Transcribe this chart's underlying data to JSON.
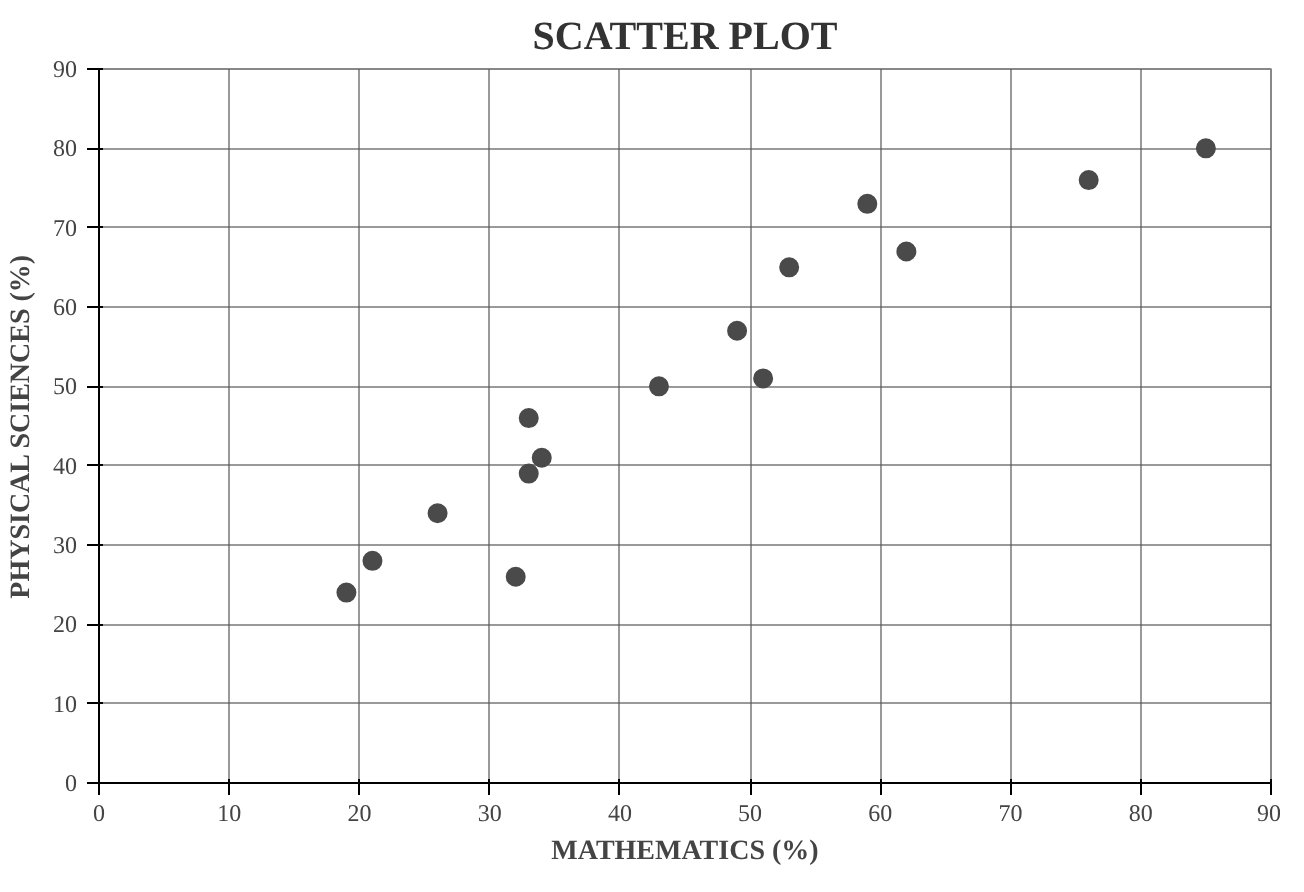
{
  "chart_data": {
    "type": "scatter",
    "title": "SCATTER PLOT",
    "xlabel": "MATHEMATICS (%)",
    "ylabel": "PHYSICAL SCIENCES (%)",
    "x": [
      19,
      21,
      26,
      32,
      33,
      33,
      34,
      43,
      49,
      51,
      53,
      59,
      62,
      76,
      85
    ],
    "series": [
      {
        "color": "#4a4a4a",
        "values": [
          24,
          28,
          34,
          26,
          39,
          46,
          41,
          50,
          57,
          51,
          65,
          73,
          67,
          76,
          80
        ]
      }
    ],
    "xlim": [
      0,
      90
    ],
    "ylim": [
      0,
      90
    ],
    "xticks": [
      0,
      10,
      20,
      30,
      40,
      50,
      60,
      70,
      80,
      90
    ],
    "yticks": [
      0,
      10,
      20,
      30,
      40,
      50,
      60,
      70,
      80,
      90
    ],
    "grid": true,
    "marker": "circle"
  }
}
